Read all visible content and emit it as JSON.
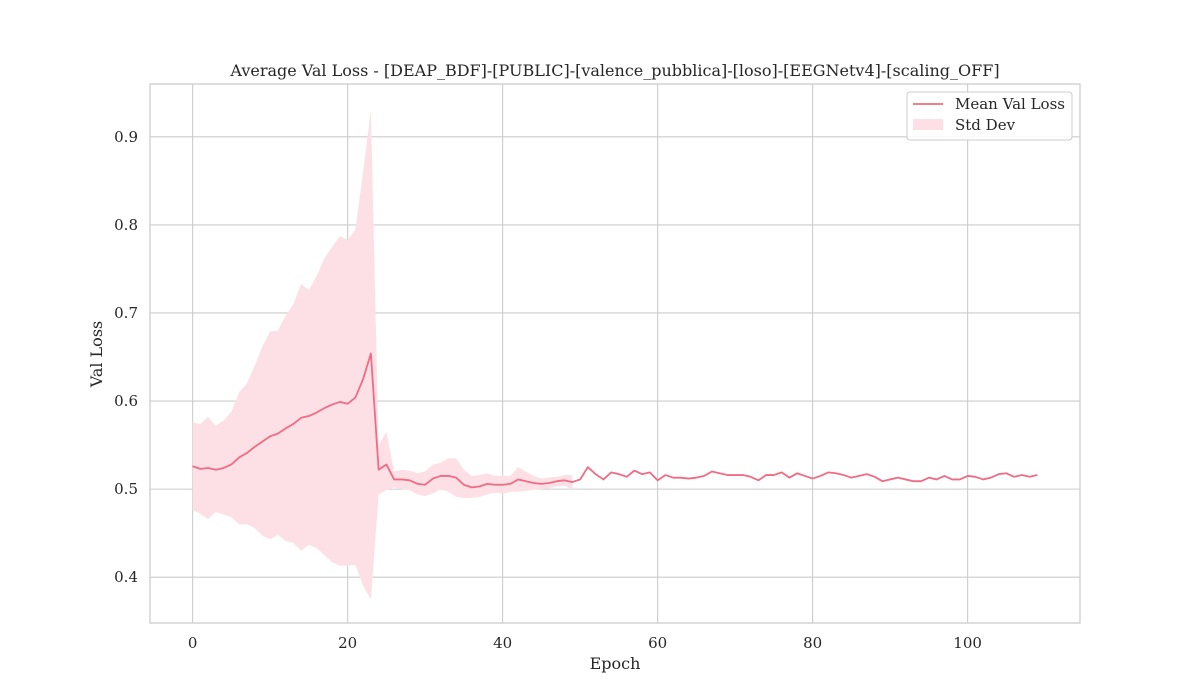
{
  "chart_data": {
    "type": "line",
    "title": "Average Val Loss - [DEAP_BDF]-[PUBLIC]-[valence_pubblica]-[loso]-[EEGNetv4]-[scaling_OFF]",
    "xlabel": "Epoch",
    "ylabel": "Val Loss",
    "xlim": [
      -5.5,
      114.5
    ],
    "ylim": [
      0.348,
      0.96
    ],
    "xticks": [
      0,
      20,
      40,
      60,
      80,
      100
    ],
    "yticks": [
      0.4,
      0.5,
      0.6,
      0.7,
      0.8,
      0.9
    ],
    "xtick_labels": [
      "0",
      "20",
      "40",
      "60",
      "80",
      "100"
    ],
    "ytick_labels": [
      "0.4",
      "0.5",
      "0.6",
      "0.7",
      "0.8",
      "0.9"
    ],
    "grid": true,
    "legend": {
      "placement": "top-right",
      "mean_label": "Mean Val Loss",
      "std_label": "Std Dev"
    },
    "colors": {
      "line": "#f06b84",
      "band": "#fde0e6"
    },
    "series": [
      {
        "name": "Mean Val Loss",
        "x": [
          0,
          1,
          2,
          3,
          4,
          5,
          6,
          7,
          8,
          9,
          10,
          11,
          12,
          13,
          14,
          15,
          16,
          17,
          18,
          19,
          20,
          21,
          22,
          23,
          24,
          25,
          26,
          27,
          28,
          29,
          30,
          31,
          32,
          33,
          34,
          35,
          36,
          37,
          38,
          39,
          40,
          41,
          42,
          43,
          44,
          45,
          46,
          47,
          48,
          49,
          50,
          51,
          52,
          53,
          54,
          55,
          56,
          57,
          58,
          59,
          60,
          61,
          62,
          63,
          64,
          65,
          66,
          67,
          68,
          69,
          70,
          71,
          72,
          73,
          74,
          75,
          76,
          77,
          78,
          79,
          80,
          81,
          82,
          83,
          84,
          85,
          86,
          87,
          88,
          89,
          90,
          91,
          92,
          93,
          94,
          95,
          96,
          97,
          98,
          99,
          100,
          101,
          102,
          103,
          104,
          105,
          106,
          107,
          108,
          109
        ],
        "y": [
          0.526,
          0.523,
          0.524,
          0.522,
          0.524,
          0.528,
          0.536,
          0.541,
          0.548,
          0.554,
          0.56,
          0.563,
          0.569,
          0.574,
          0.581,
          0.583,
          0.587,
          0.592,
          0.596,
          0.599,
          0.597,
          0.604,
          0.625,
          0.654,
          0.522,
          0.528,
          0.511,
          0.511,
          0.51,
          0.506,
          0.505,
          0.512,
          0.515,
          0.515,
          0.513,
          0.505,
          0.502,
          0.503,
          0.506,
          0.505,
          0.505,
          0.506,
          0.511,
          0.509,
          0.507,
          0.506,
          0.507,
          0.509,
          0.51,
          0.508,
          0.511,
          0.525,
          0.517,
          0.511,
          0.519,
          0.517,
          0.514,
          0.521,
          0.517,
          0.519,
          0.51,
          0.516,
          0.513,
          0.513,
          0.512,
          0.513,
          0.515,
          0.52,
          0.518,
          0.516,
          0.516,
          0.516,
          0.514,
          0.51,
          0.516,
          0.516,
          0.519,
          0.513,
          0.518,
          0.515,
          0.512,
          0.515,
          0.519,
          0.518,
          0.516,
          0.513,
          0.515,
          0.517,
          0.514,
          0.509,
          0.511,
          0.513,
          0.511,
          0.509,
          0.509,
          0.513,
          0.511,
          0.515,
          0.511,
          0.511,
          0.515,
          0.514,
          0.511,
          0.513,
          0.517,
          0.518,
          0.514,
          0.516,
          0.514,
          0.516
        ]
      },
      {
        "name": "Std Dev",
        "x": [
          0,
          1,
          2,
          3,
          4,
          5,
          6,
          7,
          8,
          9,
          10,
          11,
          12,
          13,
          14,
          15,
          16,
          17,
          18,
          19,
          20,
          21,
          22,
          23,
          24,
          25,
          26,
          27,
          28,
          29,
          30,
          31,
          32,
          33,
          34,
          35,
          36,
          37,
          38,
          39,
          40,
          41,
          42,
          43,
          44,
          45,
          46,
          47,
          48,
          49
        ],
        "upper": [
          0.576,
          0.574,
          0.582,
          0.572,
          0.578,
          0.588,
          0.61,
          0.62,
          0.64,
          0.662,
          0.679,
          0.68,
          0.697,
          0.71,
          0.733,
          0.726,
          0.742,
          0.762,
          0.775,
          0.787,
          0.783,
          0.795,
          0.86,
          0.93,
          0.55,
          0.565,
          0.52,
          0.522,
          0.521,
          0.518,
          0.52,
          0.528,
          0.53,
          0.535,
          0.535,
          0.522,
          0.515,
          0.516,
          0.518,
          0.515,
          0.515,
          0.515,
          0.525,
          0.52,
          0.515,
          0.512,
          0.513,
          0.514,
          0.516,
          0.516
        ],
        "lower": [
          0.476,
          0.472,
          0.466,
          0.474,
          0.471,
          0.468,
          0.46,
          0.46,
          0.456,
          0.447,
          0.443,
          0.448,
          0.441,
          0.439,
          0.43,
          0.437,
          0.433,
          0.425,
          0.417,
          0.413,
          0.413,
          0.414,
          0.39,
          0.375,
          0.494,
          0.499,
          0.502,
          0.5,
          0.499,
          0.494,
          0.492,
          0.495,
          0.5,
          0.497,
          0.491,
          0.49,
          0.49,
          0.491,
          0.494,
          0.496,
          0.495,
          0.497,
          0.497,
          0.498,
          0.499,
          0.5,
          0.501,
          0.503,
          0.504,
          0.5
        ]
      }
    ]
  }
}
